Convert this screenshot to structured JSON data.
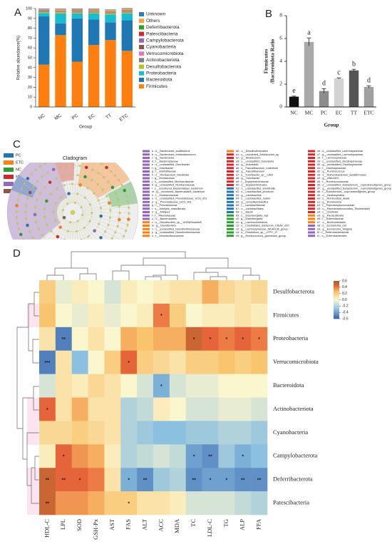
{
  "chart_data": [
    {
      "type": "stacked_bar",
      "panel_label": "A",
      "ylabel": "Relative abundance(%)",
      "xlabel": "Group",
      "categories": [
        "NC",
        "MC",
        "PC",
        "EC",
        "TT",
        "ETC"
      ],
      "ylim": [
        0,
        100
      ],
      "yticks": [
        0,
        10,
        20,
        30,
        40,
        50,
        60,
        70,
        80,
        90,
        100
      ],
      "series": [
        {
          "name": "Firmicutes",
          "color": "#ff7f0e",
          "values": [
            43,
            73,
            46,
            63,
            68,
            57
          ]
        },
        {
          "name": "Bacteroidota",
          "color": "#1f77b4",
          "values": [
            49,
            12,
            44,
            26,
            18,
            31
          ]
        },
        {
          "name": "Proteobacteria",
          "color": "#17becf",
          "values": [
            3.5,
            10,
            5,
            6,
            8,
            7
          ]
        },
        {
          "name": "Desulfobacterota",
          "color": "#bcbd22",
          "values": [
            1,
            1.2,
            1,
            1,
            1.2,
            1
          ]
        },
        {
          "name": "Actinobacteriota",
          "color": "#7f7f7f",
          "values": [
            0.6,
            0.5,
            0.6,
            0.6,
            0.5,
            0.6
          ]
        },
        {
          "name": "Verrucomicrobiota",
          "color": "#e377c2",
          "values": [
            0.5,
            0.3,
            0.5,
            0.4,
            0.4,
            0.5
          ]
        },
        {
          "name": "Cyanobacteria",
          "color": "#8c564b",
          "values": [
            0.3,
            0.3,
            0.3,
            0.3,
            0.3,
            0.3
          ]
        },
        {
          "name": "Campylobacterota",
          "color": "#9467bd",
          "values": [
            0.3,
            0.3,
            0.3,
            0.3,
            0.3,
            0.3
          ]
        },
        {
          "name": "Patescibacteria",
          "color": "#d62728",
          "values": [
            0.2,
            0.2,
            0.2,
            0.2,
            0.2,
            0.2
          ]
        },
        {
          "name": "Deferribacterota",
          "color": "#2ca02c",
          "values": [
            0.3,
            0.2,
            0.3,
            0.3,
            0.3,
            0.3
          ]
        },
        {
          "name": "Others",
          "color": "#ff9e3d",
          "values": [
            0.8,
            1.5,
            1.2,
            1.4,
            1.2,
            1.6
          ]
        },
        {
          "name": "Unknown",
          "color": "#2a7fc0",
          "values": [
            0.5,
            0.5,
            0.6,
            0.5,
            0.6,
            0.6
          ]
        }
      ]
    },
    {
      "type": "bar",
      "panel_label": "B",
      "ylabel": [
        "Firmicutes",
        "/Bacteroidota Ratio"
      ],
      "xlabel": "Group",
      "categories": [
        "NC",
        "MC",
        "PC",
        "EC",
        "TT",
        "ETC"
      ],
      "values": [
        0.9,
        5.7,
        1.4,
        2.5,
        3.2,
        1.75
      ],
      "errors": [
        0.05,
        0.35,
        0.2,
        0.05,
        0.1,
        0.1
      ],
      "colors": [
        "#111111",
        "#a9a9a9",
        "#8c8c8c",
        "#d3d3d3",
        "#555555",
        "#a0a0a0"
      ],
      "annotations": [
        "e",
        "a",
        "d",
        "c",
        "b",
        "d"
      ],
      "ylim": [
        0,
        8
      ],
      "yticks": [
        0,
        2,
        4,
        6,
        8
      ]
    },
    {
      "type": "cladogram",
      "panel_label": "C",
      "title": "Cladogram",
      "groups": [
        {
          "name": "PC",
          "color": "#1f77b4"
        },
        {
          "name": "ETC",
          "color": "#ff7f0e"
        },
        {
          "name": "NC",
          "color": "#2ca02c"
        },
        {
          "name": "MC",
          "color": "#d62728"
        },
        {
          "name": "EC",
          "color": "#9467bd"
        },
        {
          "name": "TT",
          "color": "#8c564b"
        }
      ],
      "legend_columns": [
        [
          {
            "label": "a : s__Bacteroides_acidifaciens",
            "color": "#9467bd"
          },
          {
            "label": "b : s__Bacteroides_thetaiotaomicron",
            "color": "#9467bd"
          },
          {
            "label": "c : g__Bacteroides",
            "color": "#9467bd"
          },
          {
            "label": "d : f__Bacteroidaceae",
            "color": "#9467bd"
          },
          {
            "label": "e : s__unclassified_Odoribacter",
            "color": "#9467bd"
          },
          {
            "label": "f : g__Odoribacter",
            "color": "#9467bd"
          },
          {
            "label": "g : f__Marinifilaceae",
            "color": "#9467bd"
          },
          {
            "label": "h : s__Muribaculum_intestinale",
            "color": "#9467bd"
          },
          {
            "label": "i : g__Muribaculum",
            "color": "#9467bd"
          },
          {
            "label": "j : s__unclassified_Muribaculaceae",
            "color": "#9467bd"
          },
          {
            "label": "k : g__unclassified_Muribaculaceae",
            "color": "#9467bd"
          },
          {
            "label": "l : s__uncultured_Bacteroidales_bacterium",
            "color": "#9467bd"
          },
          {
            "label": "m : g__uncultured_Bacteroidales_bacterium",
            "color": "#9467bd"
          },
          {
            "label": "n : f__Muribaculaceae",
            "color": "#9467bd"
          },
          {
            "label": "o : s__unclassified_Prevotellaceae_UCG_001",
            "color": "#9467bd"
          },
          {
            "label": "p : g__Prevotellaceae_UCG_001",
            "color": "#9467bd"
          },
          {
            "label": "q : f__Prevotellaceae",
            "color": "#9467bd"
          },
          {
            "label": "r : s__Alistipes_massiliensis",
            "color": "#9467bd"
          },
          {
            "label": "s : g__Alistipes",
            "color": "#9467bd"
          },
          {
            "label": "t : f__Rikenellaceae",
            "color": "#9467bd"
          },
          {
            "label": "u : o__Bacteroidales",
            "color": "#9467bd"
          },
          {
            "label": "v : s__Desulfovibrio_sp__UNSW3caefatS",
            "color": "#ff7f0e"
          },
          {
            "label": "w : g__Desulfovibrio",
            "color": "#ff7f0e"
          },
          {
            "label": "x : s__unclassified_Desulfovibrionaceae",
            "color": "#ff7f0e"
          },
          {
            "label": "y : g__unclassified_Desulfovibrionaceae",
            "color": "#ff7f0e"
          },
          {
            "label": "z : f__Desulfovibrionaceae",
            "color": "#ff7f0e"
          }
        ],
        [
          {
            "label": "a0 : o__Desulfovibrionales",
            "color": "#ff7f0e"
          },
          {
            "label": "a1 : s__uncultured_Allobaculum_sp",
            "color": "#d62728"
          },
          {
            "label": "a2 : g__Allobaculum",
            "color": "#d62728"
          },
          {
            "label": "a3 : s__unclassified_Dubosiella",
            "color": "#d62728"
          },
          {
            "label": "a4 : g__Dubosiella",
            "color": "#d62728"
          },
          {
            "label": "a5 : s__Faecalibaculum_rodentium",
            "color": "#d62728"
          },
          {
            "label": "a6 : g__Faecalibaculum",
            "color": "#d62728"
          },
          {
            "label": "a7 : s__Turicibacter_sp__LA61",
            "color": "#d62728"
          },
          {
            "label": "a8 : g__Turicibacter",
            "color": "#d62728"
          },
          {
            "label": "a9 : f__Erysipelotrichaceae",
            "color": "#d62728"
          },
          {
            "label": "b0 : o__Erysipelotrichales",
            "color": "#d62728"
          },
          {
            "label": "b1 : s__Lactobacillus_intestinalis",
            "color": "#1f77b4"
          },
          {
            "label": "b2 : s__Lactobacillus_johnsonii",
            "color": "#1f77b4"
          },
          {
            "label": "b3 : g__Lactobacillus",
            "color": "#1f77b4"
          },
          {
            "label": "b4 : s__Lactobacillus_reuteri",
            "color": "#1f77b4"
          },
          {
            "label": "b5 : g__Limosilactobacillus",
            "color": "#1f77b4"
          },
          {
            "label": "b6 : f__Lactobacillaceae",
            "color": "#1f77b4"
          },
          {
            "label": "b7 : o__Lactobacillales",
            "color": "#1f77b4"
          },
          {
            "label": "b8 : c__Bacilli",
            "color": "#1f77b4"
          },
          {
            "label": "b9 : s__Eisenbergiella_tayi",
            "color": "#2ca02c"
          },
          {
            "label": "c0 : g__Eisenbergiella",
            "color": "#2ca02c"
          },
          {
            "label": "c1 : g__Lachnoclostridium",
            "color": "#2ca02c"
          },
          {
            "label": "c2 : s__Clostridiales_bacterium_CIEAF_020",
            "color": "#2ca02c"
          },
          {
            "label": "c3 : g__Lachnospiraceae_NK4A136_group",
            "color": "#2ca02c"
          },
          {
            "label": "c4 : s__Clostridium_sp__cTPY_17",
            "color": "#2ca02c"
          },
          {
            "label": "c5 : g__Ruminococcus_gauvreauii_group",
            "color": "#2ca02c"
          }
        ],
        [
          {
            "label": "c6 : s__unclassified_Lachnospiraceae",
            "color": "#d62728"
          },
          {
            "label": "c7 : g__unclassified_Lachnospiraceae",
            "color": "#d62728"
          },
          {
            "label": "c8 : f__Lachnospiraceae",
            "color": "#d62728"
          },
          {
            "label": "c9 : s__unclassified_Oscillospiraceae",
            "color": "#d62728"
          },
          {
            "label": "d0 : g__unclassified_Oscillospiraceae",
            "color": "#d62728"
          },
          {
            "label": "d1 : f__Oscillospiraceae",
            "color": "#d62728"
          },
          {
            "label": "d2 : g__Ruminococcus",
            "color": "#d62728"
          },
          {
            "label": "d3 : s__Ruthenibacterium_lactatiformans",
            "color": "#d62728"
          },
          {
            "label": "d4 : g__UBA1819",
            "color": "#d62728"
          },
          {
            "label": "d5 : f__Ruminococcaceae",
            "color": "#d62728"
          },
          {
            "label": "d6 : s__unclassified_Eubacterium__coprostanoligenes_group",
            "color": "#d62728"
          },
          {
            "label": "d7 : g__unclassified_Eubacterium__coprostanoligenes_group",
            "color": "#d62728"
          },
          {
            "label": "d8 : f__Eubacterium__coprostanoligenes_group",
            "color": "#d62728"
          },
          {
            "label": "d9 : o__Oscillospirales",
            "color": "#d62728"
          },
          {
            "label": "e0 : s__Romboutsia_ilealis",
            "color": "#d62728"
          },
          {
            "label": "e1 : g__Romboutsia",
            "color": "#d62728"
          },
          {
            "label": "e2 : f__Peptostreptococcaceae",
            "color": "#d62728"
          },
          {
            "label": "e3 : o__Peptostreptococcales_Tissierellales",
            "color": "#d62728"
          },
          {
            "label": "e4 : c__Clostridia",
            "color": "#d62728"
          },
          {
            "label": "e5 : g__Parasutterella",
            "color": "#ff7f0e"
          },
          {
            "label": "e6 : f__Sutterellaceae",
            "color": "#ff7f0e"
          },
          {
            "label": "e7 : o__Burkholderiales",
            "color": "#ff7f0e"
          },
          {
            "label": "e8 : s__Escherichia_coli",
            "color": "#9467bd"
          },
          {
            "label": "e9 : g__Escherichia_Shigella",
            "color": "#9467bd"
          },
          {
            "label": "f0 : f__Enterobacteriaceae",
            "color": "#9467bd"
          },
          {
            "label": "f1 : o__Enterobacterales",
            "color": "#9467bd"
          }
        ]
      ]
    },
    {
      "type": "heatmap",
      "panel_label": "D",
      "rows": [
        "Desulfobacterota",
        "Firmicutes",
        "Proteobacteria",
        "Verrucomicrobiota",
        "Bacteroidota",
        "Actinobacteriota",
        "Cyanobacteria",
        "Campylobacterota",
        "Deferribacterota",
        "Patescibacteria"
      ],
      "columns": [
        "HDL-C",
        "LPL",
        "SOD",
        "GSH-Px",
        "AST",
        "FAS",
        "ALT",
        "ACC",
        "MDA",
        "TC",
        "LDL-C",
        "TG",
        "ALP",
        "FFA"
      ],
      "values": [
        [
          0.2,
          -0.05,
          0.05,
          0.0,
          -0.1,
          0.05,
          0.0,
          0.05,
          0.1,
          0.1,
          0.3,
          0.15,
          0.1,
          0.15
        ],
        [
          0.25,
          0.0,
          -0.05,
          0.05,
          -0.05,
          0.0,
          0.05,
          0.4,
          0.2,
          0.0,
          0.05,
          0.05,
          0.1,
          0.05
        ],
        [
          0.1,
          -0.5,
          0.0,
          0.1,
          0.0,
          0.3,
          0.25,
          0.3,
          0.3,
          0.5,
          0.45,
          0.4,
          0.45,
          0.4
        ],
        [
          -0.5,
          0.1,
          -0.3,
          0.0,
          0.2,
          0.45,
          0.2,
          0.15,
          0.1,
          0.2,
          0.2,
          0.25,
          0.2,
          0.25
        ],
        [
          -0.1,
          0.1,
          0.05,
          0.15,
          0.1,
          0.0,
          -0.1,
          -0.35,
          -0.1,
          -0.05,
          -0.05,
          0.0,
          0.0,
          0.0
        ],
        [
          0.45,
          0.1,
          0.3,
          0.1,
          0.1,
          -0.2,
          -0.15,
          0.05,
          0.0,
          -0.1,
          -0.1,
          -0.05,
          -0.05,
          -0.1
        ],
        [
          0.15,
          0.15,
          0.2,
          0.15,
          0.1,
          -0.2,
          -0.25,
          -0.3,
          -0.3,
          -0.25,
          -0.25,
          -0.2,
          -0.2,
          -0.25
        ],
        [
          0.05,
          0.45,
          0.35,
          0.3,
          0.05,
          -0.2,
          -0.15,
          -0.1,
          -0.15,
          -0.4,
          -0.45,
          -0.25,
          -0.35,
          -0.3
        ],
        [
          0.5,
          0.45,
          0.45,
          0.4,
          0.1,
          -0.35,
          -0.45,
          -0.25,
          -0.2,
          -0.45,
          -0.4,
          -0.4,
          -0.45,
          -0.45
        ],
        [
          0.5,
          0.35,
          0.35,
          0.3,
          0.2,
          0.2,
          0.1,
          0.1,
          0.05,
          -0.1,
          -0.1,
          -0.1,
          -0.15,
          -0.2
        ]
      ],
      "stars": [
        [
          null,
          null,
          null,
          null,
          null,
          null,
          null,
          null,
          null,
          null,
          null,
          null,
          null,
          null
        ],
        [
          null,
          null,
          null,
          null,
          null,
          null,
          null,
          "*",
          null,
          null,
          null,
          null,
          null,
          null
        ],
        [
          null,
          "**",
          null,
          null,
          null,
          null,
          null,
          null,
          null,
          "*",
          "*",
          "*",
          "*",
          "*"
        ],
        [
          "***",
          null,
          null,
          null,
          null,
          "*",
          null,
          null,
          null,
          null,
          null,
          null,
          null,
          null
        ],
        [
          null,
          null,
          null,
          null,
          null,
          null,
          null,
          "*",
          null,
          null,
          null,
          null,
          null,
          null
        ],
        [
          "*",
          null,
          null,
          null,
          null,
          null,
          null,
          null,
          null,
          null,
          null,
          null,
          null,
          null
        ],
        [
          null,
          null,
          null,
          null,
          null,
          null,
          null,
          null,
          null,
          null,
          null,
          null,
          null,
          null
        ],
        [
          null,
          "*",
          null,
          null,
          null,
          null,
          null,
          null,
          null,
          "*",
          "**",
          null,
          "*",
          null
        ],
        [
          "**",
          "**",
          "*",
          null,
          null,
          "*",
          "**",
          null,
          null,
          "**",
          "*",
          "*",
          "**",
          "**"
        ],
        [
          "**",
          null,
          null,
          null,
          null,
          "*",
          null,
          null,
          null,
          null,
          null,
          null,
          null,
          null
        ]
      ],
      "clim": [
        -0.6,
        0.6
      ],
      "cticks": [
        0.6,
        0.4,
        0.2,
        {
          "value": 0,
          "label": "0.0"
        },
        -0.2,
        -0.4,
        -0.6
      ]
    }
  ]
}
